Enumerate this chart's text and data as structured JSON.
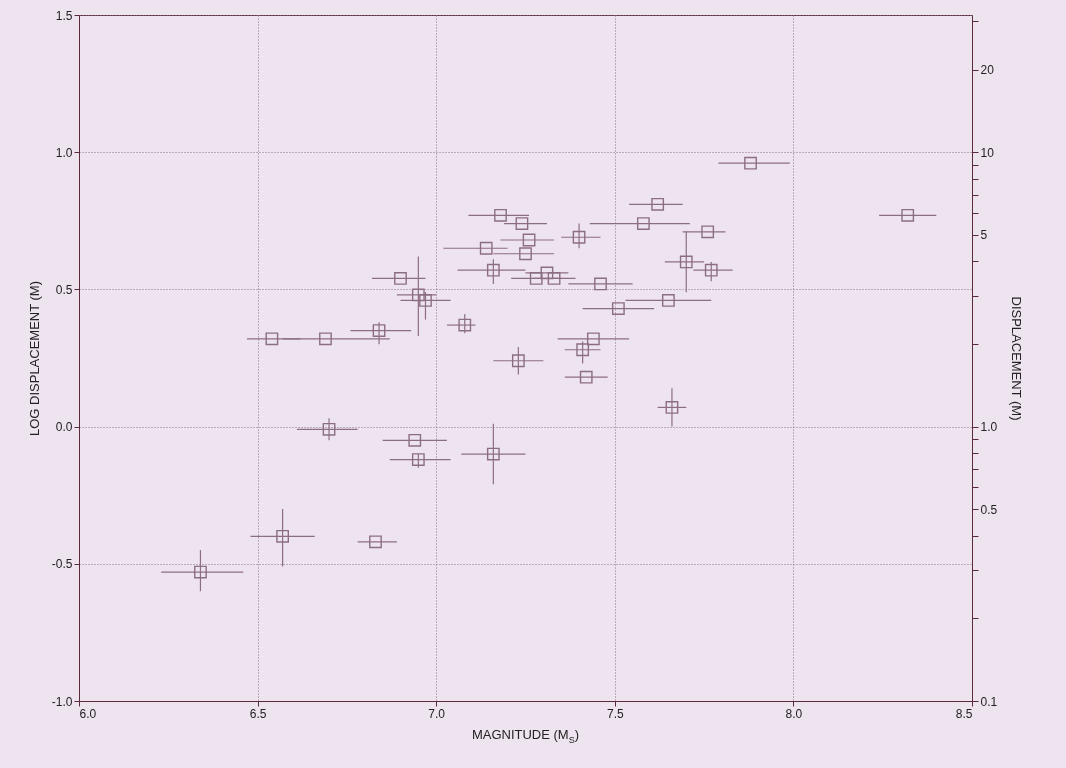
{
  "chart_data": {
    "type": "scatter",
    "xlabel": "MAGNITUDE (M$_{S}$)",
    "ylabel": "LOG DISPLACEMENT (M)",
    "y2label": "DISPLACEMENT (M)",
    "xlim": [
      6,
      8.5
    ],
    "ylim": [
      -1,
      1.5
    ],
    "y2lim": [
      0.1,
      31.62
    ],
    "log": "y2",
    "grid": true,
    "marker": "square",
    "xticks": [
      {
        "value": 6,
        "label": "6.0"
      },
      6.5,
      {
        "value": 7,
        "label": "7.0"
      },
      7.5,
      {
        "value": 8,
        "label": "8.0"
      },
      8.5
    ],
    "yticks": [
      {
        "value": -1,
        "label": "-1.0"
      },
      -0.5,
      {
        "value": 0,
        "label": "0.0"
      },
      0.5,
      {
        "value": 1,
        "label": "1.0"
      },
      1.5
    ],
    "y2ticks": [
      0.1,
      {
        "value": 0.2,
        "label": null
      },
      {
        "value": 0.3,
        "label": null
      },
      {
        "value": 0.4,
        "label": null
      },
      0.5,
      {
        "value": 0.6,
        "label": null
      },
      {
        "value": 0.7,
        "label": null
      },
      {
        "value": 0.8,
        "label": null
      },
      {
        "value": 0.9,
        "label": null
      },
      {
        "value": 1,
        "label": "1.0"
      },
      {
        "value": 2,
        "label": null
      },
      {
        "value": 3,
        "label": null
      },
      {
        "value": 4,
        "label": null
      },
      5,
      {
        "value": 6,
        "label": null
      },
      {
        "value": 7,
        "label": null
      },
      {
        "value": 8,
        "label": null
      },
      {
        "value": 9,
        "label": null
      },
      10,
      20,
      {
        "value": 30,
        "label": null
      }
    ],
    "x": [
      6.34,
      6.57,
      6.83,
      6.54,
      6.69,
      6.7,
      6.84,
      6.9,
      6.95,
      6.97,
      6.94,
      6.95,
      7.08,
      7.16,
      7.14,
      7.18,
      7.16,
      7.23,
      7.24,
      7.26,
      7.25,
      7.31,
      7.28,
      7.33,
      7.4,
      7.41,
      7.42,
      7.44,
      7.46,
      7.51,
      7.58,
      7.62,
      7.65,
      7.66,
      7.7,
      7.76,
      7.77,
      7.88,
      8.32
    ],
    "series": [
      {
        "color": "#8c6e82",
        "values": [
          -0.53,
          -0.4,
          -0.42,
          0.32,
          0.32,
          -0.01,
          0.35,
          0.54,
          0.48,
          0.46,
          -0.05,
          -0.12,
          0.37,
          0.57,
          0.65,
          0.77,
          -0.1,
          0.24,
          0.74,
          0.68,
          0.63,
          0.56,
          0.54,
          0.54,
          0.69,
          0.28,
          0.18,
          0.32,
          0.52,
          0.43,
          0.74,
          0.81,
          0.46,
          0.07,
          0.6,
          0.71,
          0.57,
          0.96,
          0.77
        ],
        "errors": [
          [
            -0.6,
            -0.45
          ],
          [
            -0.51,
            -0.3
          ],
          null,
          null,
          null,
          [
            -0.05,
            0.03
          ],
          [
            0.3,
            0.38
          ],
          null,
          [
            0.33,
            0.62
          ],
          [
            0.39,
            0.49
          ],
          null,
          [
            -0.15,
            -0.1
          ],
          [
            0.34,
            0.41
          ],
          [
            0.52,
            0.61
          ],
          null,
          null,
          [
            -0.21,
            0.01
          ],
          [
            0.19,
            0.29
          ],
          null,
          null,
          null,
          null,
          null,
          null,
          [
            0.65,
            0.74
          ],
          [
            0.23,
            0.31
          ],
          null,
          null,
          null,
          null,
          null,
          null,
          null,
          [
            0.0,
            0.14
          ],
          [
            0.49,
            0.71
          ],
          null,
          [
            0.53,
            0.6
          ],
          null,
          null
        ],
        "xerrors": [
          [
            6.23,
            6.46
          ],
          [
            6.48,
            6.66
          ],
          [
            6.78,
            6.89
          ],
          [
            6.47,
            6.62
          ],
          [
            6.57,
            6.87
          ],
          [
            6.61,
            6.78
          ],
          [
            6.76,
            6.93
          ],
          [
            6.82,
            6.97
          ],
          [
            6.89,
            7.0
          ],
          [
            6.9,
            7.04
          ],
          [
            6.85,
            7.03
          ],
          [
            6.87,
            7.04
          ],
          [
            7.03,
            7.11
          ],
          [
            7.06,
            7.25
          ],
          [
            7.02,
            7.2
          ],
          [
            7.09,
            7.26
          ],
          [
            7.07,
            7.25
          ],
          [
            7.16,
            7.3
          ],
          [
            7.19,
            7.31
          ],
          [
            7.18,
            7.33
          ],
          [
            7.16,
            7.33
          ],
          [
            7.25,
            7.37
          ],
          [
            7.21,
            7.35
          ],
          [
            7.27,
            7.39
          ],
          [
            7.35,
            7.46
          ],
          [
            7.36,
            7.46
          ],
          [
            7.36,
            7.48
          ],
          [
            7.34,
            7.54
          ],
          [
            7.37,
            7.55
          ],
          [
            7.41,
            7.61
          ],
          [
            7.43,
            7.71
          ],
          [
            7.54,
            7.69
          ],
          [
            7.53,
            7.77
          ],
          [
            7.62,
            7.7
          ],
          [
            7.64,
            7.75
          ],
          [
            7.69,
            7.81
          ],
          [
            7.72,
            7.83
          ],
          [
            7.79,
            7.99
          ],
          [
            8.24,
            8.4
          ]
        ]
      }
    ]
  }
}
